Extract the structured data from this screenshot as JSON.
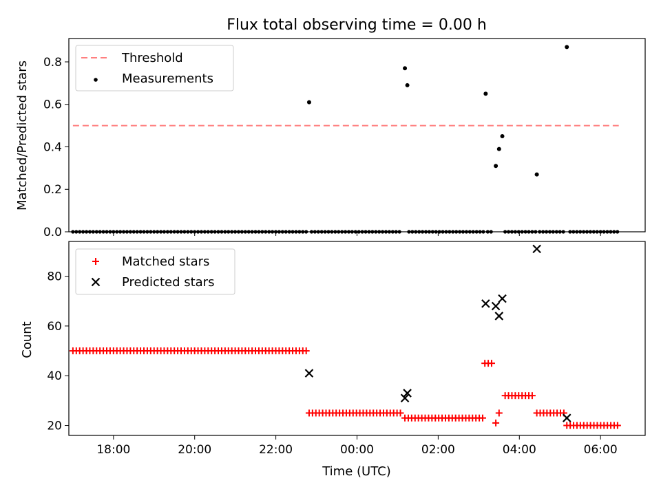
{
  "figure": {
    "title": "Flux total observing time = 0.00 h",
    "xlabel": "Time (UTC)"
  },
  "colors": {
    "threshold": "#ff7f7f",
    "measurement": "#000000",
    "matched": "#ff0000",
    "predicted": "#000000"
  },
  "chart_data": [
    {
      "type": "scatter",
      "panel": "top",
      "ylabel": "Matched/Predicted stars",
      "ylim": [
        0,
        0.91
      ],
      "y_ticks": [
        0.0,
        0.2,
        0.4,
        0.6,
        0.8
      ],
      "y_tick_labels": [
        "0.0",
        "0.2",
        "0.4",
        "0.6",
        "0.8"
      ],
      "x_axis_hours_from_midnight": [
        -7.1,
        7.1
      ],
      "x_ticks": [
        -6,
        -4,
        -2,
        0,
        2,
        4,
        6
      ],
      "x_tick_labels": [
        "18:00",
        "20:00",
        "22:00",
        "00:00",
        "02:00",
        "04:00",
        "06:00"
      ],
      "legend": {
        "position": "top-left",
        "entries": [
          "Threshold",
          "Measurements"
        ]
      },
      "threshold": {
        "name": "Threshold",
        "value": 0.5,
        "x_range_hours": [
          -7.0,
          6.45
        ]
      },
      "measurements": {
        "name": "Measurements",
        "zero_segments_hours": [
          {
            "start": -7.0,
            "end": -1.25,
            "step": 0.0833
          },
          {
            "start": -1.12,
            "end": 1.12,
            "step": 0.0833
          },
          {
            "start": 1.28,
            "end": 3.12,
            "step": 0.0833
          },
          {
            "start": 3.22,
            "end": 3.38,
            "step": 0.0833
          },
          {
            "start": 3.65,
            "end": 4.4,
            "step": 0.0833
          },
          {
            "start": 4.5,
            "end": 5.15,
            "step": 0.0833
          },
          {
            "start": 5.25,
            "end": 6.45,
            "step": 0.0833
          }
        ],
        "points": [
          {
            "x_hours": -1.18,
            "y": 0.61
          },
          {
            "x_hours": 1.18,
            "y": 0.77
          },
          {
            "x_hours": 1.24,
            "y": 0.69
          },
          {
            "x_hours": 3.17,
            "y": 0.65
          },
          {
            "x_hours": 3.42,
            "y": 0.31
          },
          {
            "x_hours": 3.5,
            "y": 0.39
          },
          {
            "x_hours": 3.58,
            "y": 0.45
          },
          {
            "x_hours": 4.43,
            "y": 0.27
          },
          {
            "x_hours": 5.17,
            "y": 0.87
          }
        ]
      }
    },
    {
      "type": "scatter",
      "panel": "bottom",
      "ylabel": "Count",
      "ylim": [
        16,
        94
      ],
      "y_ticks": [
        20,
        40,
        60,
        80
      ],
      "y_tick_labels": [
        "20",
        "40",
        "60",
        "80"
      ],
      "x_axis_hours_from_midnight": [
        -7.1,
        7.1
      ],
      "x_ticks": [
        -6,
        -4,
        -2,
        0,
        2,
        4,
        6
      ],
      "x_tick_labels": [
        "18:00",
        "20:00",
        "22:00",
        "00:00",
        "02:00",
        "04:00",
        "06:00"
      ],
      "legend": {
        "position": "top-left",
        "entries": [
          "Matched stars",
          "Predicted stars"
        ]
      },
      "matched": {
        "name": "Matched stars",
        "segments_hours": [
          {
            "start": -7.0,
            "end": -1.25,
            "step": 0.0833,
            "value": 50
          },
          {
            "start": -1.18,
            "end": 1.12,
            "step": 0.0833,
            "value": 25
          },
          {
            "start": 1.18,
            "end": 3.12,
            "step": 0.0833,
            "value": 23
          },
          {
            "start": 3.15,
            "end": 3.35,
            "step": 0.0833,
            "value": 45
          },
          {
            "start": 3.65,
            "end": 4.35,
            "step": 0.0833,
            "value": 32
          },
          {
            "start": 4.43,
            "end": 5.15,
            "step": 0.0833,
            "value": 25
          },
          {
            "start": 5.17,
            "end": 6.5,
            "step": 0.0833,
            "value": 20
          }
        ],
        "points": [
          {
            "x_hours": 3.42,
            "y": 21
          },
          {
            "x_hours": 3.5,
            "y": 25
          }
        ]
      },
      "predicted": {
        "name": "Predicted stars",
        "points": [
          {
            "x_hours": -1.18,
            "y": 41
          },
          {
            "x_hours": 1.18,
            "y": 31
          },
          {
            "x_hours": 1.24,
            "y": 33
          },
          {
            "x_hours": 3.17,
            "y": 69
          },
          {
            "x_hours": 3.42,
            "y": 68
          },
          {
            "x_hours": 3.5,
            "y": 64
          },
          {
            "x_hours": 3.58,
            "y": 71
          },
          {
            "x_hours": 4.43,
            "y": 91
          },
          {
            "x_hours": 5.17,
            "y": 23
          }
        ]
      }
    }
  ]
}
